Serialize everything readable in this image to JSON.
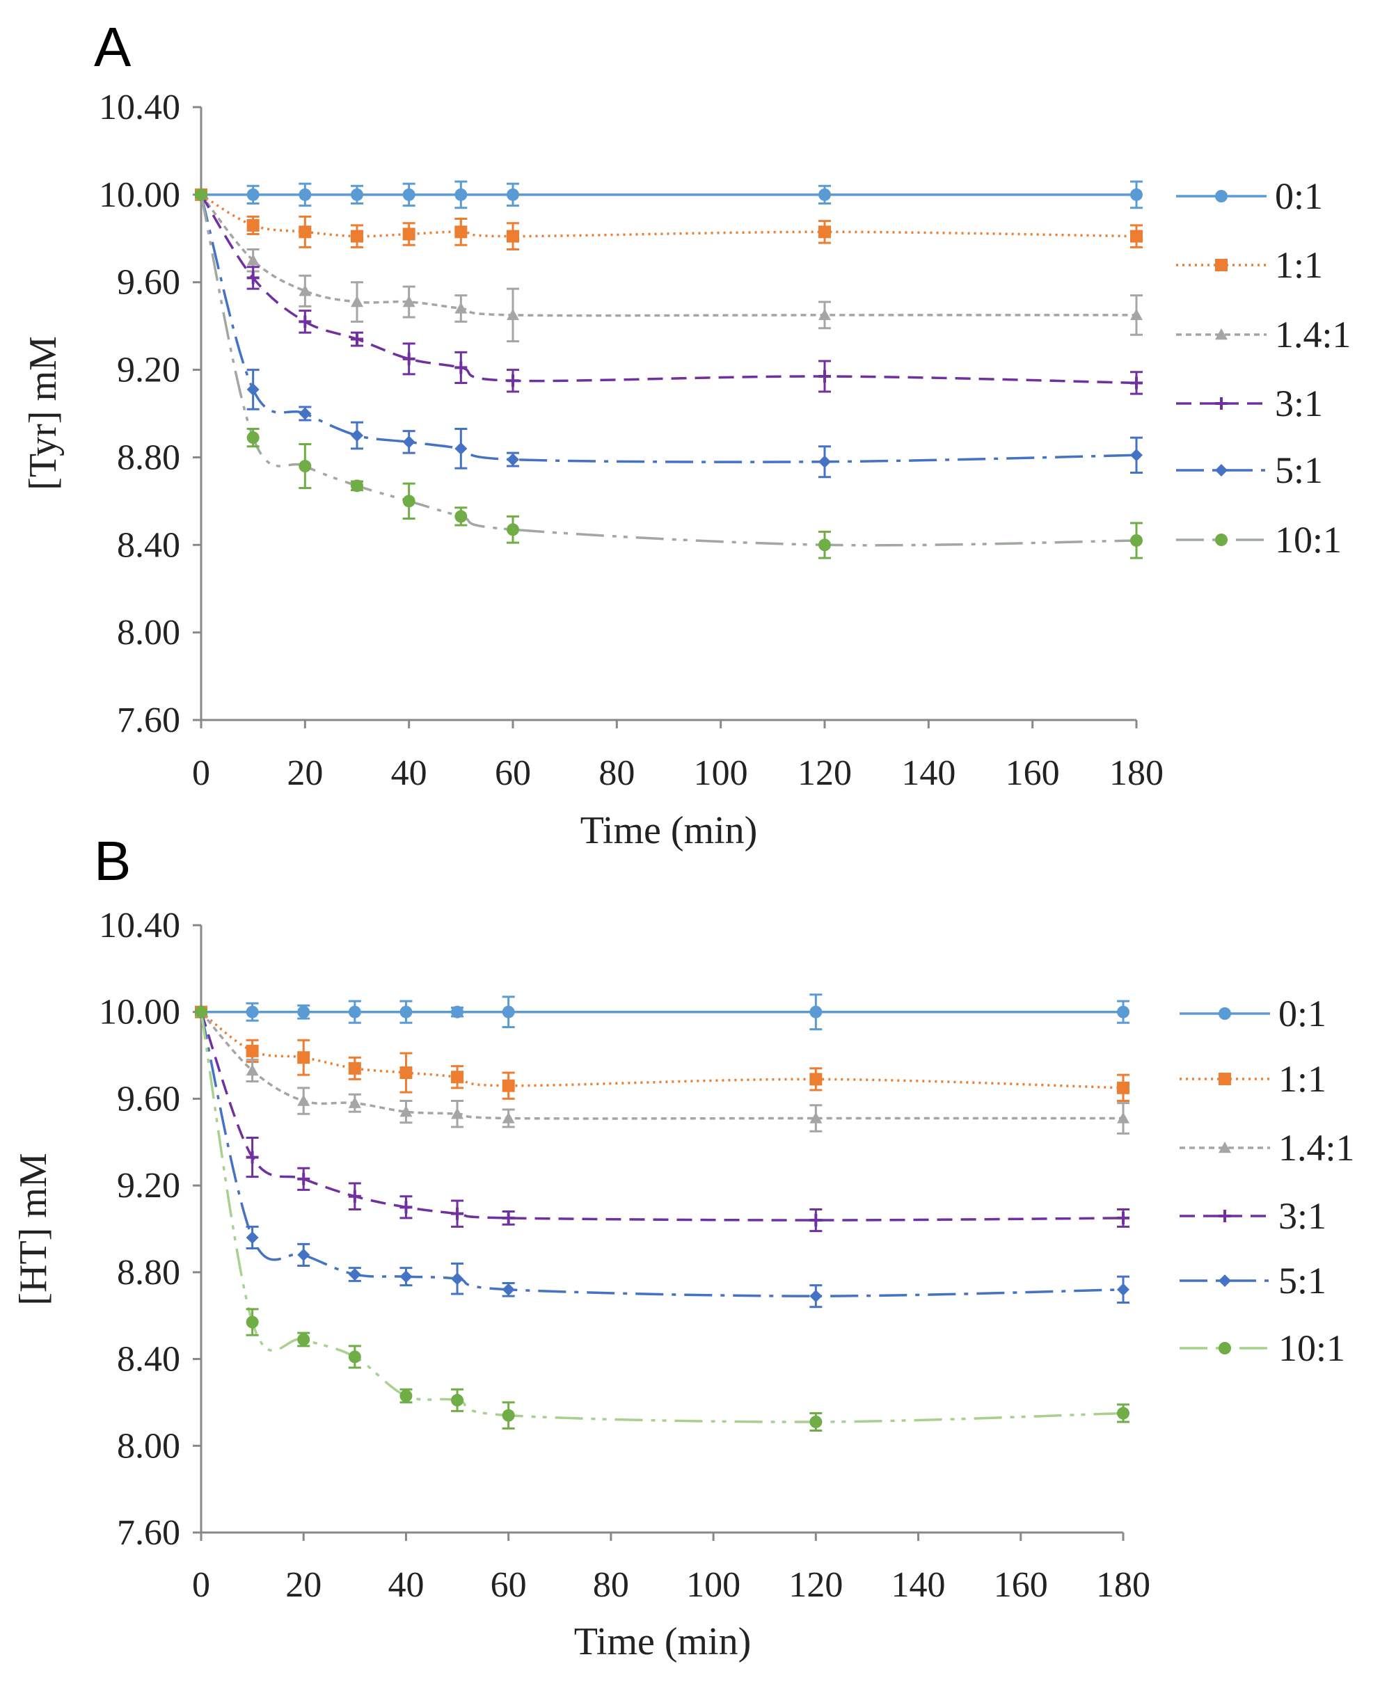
{
  "chart_data": [
    {
      "type": "line",
      "panel_label": "A",
      "xlabel": "Time (min)",
      "ylabel": "[Tyr] mM",
      "xlim": [
        0,
        180
      ],
      "ylim": [
        7.6,
        10.4
      ],
      "xticks": [
        0,
        20,
        40,
        60,
        80,
        100,
        120,
        140,
        160,
        180
      ],
      "yticks": [
        "7.60",
        "8.00",
        "8.40",
        "8.80",
        "9.20",
        "9.60",
        "10.00",
        "10.40"
      ],
      "legend_position": "right",
      "x": [
        0,
        10,
        20,
        30,
        40,
        50,
        60,
        120,
        180
      ],
      "series": [
        {
          "name": "0:1",
          "color": "#5b9bd5",
          "line": "#5b9bd5",
          "dash": "",
          "marker": "circle",
          "values": [
            10.0,
            10.0,
            10.0,
            10.0,
            10.0,
            10.0,
            10.0,
            10.0,
            10.0
          ],
          "errors": [
            0.01,
            0.04,
            0.05,
            0.04,
            0.05,
            0.06,
            0.05,
            0.04,
            0.06
          ]
        },
        {
          "name": "1:1",
          "color": "#ed7d31",
          "line": "#ed7d31",
          "dash": "3 6",
          "marker": "square",
          "values": [
            10.0,
            9.86,
            9.83,
            9.81,
            9.82,
            9.83,
            9.81,
            9.83,
            9.81
          ],
          "errors": [
            0.01,
            0.04,
            0.07,
            0.05,
            0.05,
            0.06,
            0.06,
            0.05,
            0.05
          ]
        },
        {
          "name": "1.4:1",
          "color": "#a5a5a5",
          "line": "#a5a5a5",
          "dash": "8 6",
          "marker": "triangle",
          "values": [
            10.0,
            9.7,
            9.56,
            9.51,
            9.51,
            9.48,
            9.45,
            9.45,
            9.45
          ],
          "errors": [
            0.01,
            0.05,
            0.07,
            0.09,
            0.07,
            0.06,
            0.12,
            0.06,
            0.09
          ]
        },
        {
          "name": "3:1",
          "color": "#7030a0",
          "line": "#7030a0",
          "dash": "22 12",
          "marker": "plus",
          "values": [
            10.0,
            9.62,
            9.42,
            9.34,
            9.25,
            9.21,
            9.15,
            9.17,
            9.14
          ],
          "errors": [
            0.01,
            0.05,
            0.05,
            0.03,
            0.07,
            0.07,
            0.05,
            0.07,
            0.05
          ]
        },
        {
          "name": "5:1",
          "color": "#4472c4",
          "line": "#4472c4",
          "dash": "40 12 6 12",
          "marker": "diamond",
          "values": [
            10.0,
            9.11,
            9.0,
            8.9,
            8.87,
            8.84,
            8.79,
            8.78,
            8.81
          ],
          "errors": [
            0.01,
            0.09,
            0.03,
            0.06,
            0.05,
            0.09,
            0.03,
            0.07,
            0.08
          ]
        },
        {
          "name": "10:1",
          "color": "#70ad47",
          "line": "#a0a8a0",
          "dash": "40 12 6 10 6 12",
          "marker": "circle",
          "values": [
            10.0,
            8.89,
            8.76,
            8.67,
            8.6,
            8.53,
            8.47,
            8.4,
            8.42
          ],
          "errors": [
            0.01,
            0.04,
            0.1,
            0.02,
            0.08,
            0.04,
            0.06,
            0.06,
            0.08
          ]
        }
      ]
    },
    {
      "type": "line",
      "panel_label": "B",
      "xlabel": "Time (min)",
      "ylabel": "[HT] mM",
      "xlim": [
        0,
        180
      ],
      "ylim": [
        7.6,
        10.4
      ],
      "xticks": [
        0,
        20,
        40,
        60,
        80,
        100,
        120,
        140,
        160,
        180
      ],
      "yticks": [
        "7.60",
        "8.00",
        "8.40",
        "8.80",
        "9.20",
        "9.60",
        "10.00",
        "10.40"
      ],
      "legend_position": "right",
      "x": [
        0,
        10,
        20,
        30,
        40,
        50,
        60,
        120,
        180
      ],
      "series": [
        {
          "name": "0:1",
          "color": "#5b9bd5",
          "line": "#5b9bd5",
          "dash": "",
          "marker": "circle",
          "values": [
            10.0,
            10.0,
            10.0,
            10.0,
            10.0,
            10.0,
            10.0,
            10.0,
            10.0
          ],
          "errors": [
            0.01,
            0.04,
            0.03,
            0.05,
            0.05,
            0.02,
            0.07,
            0.08,
            0.05
          ]
        },
        {
          "name": "1:1",
          "color": "#ed7d31",
          "line": "#ed7d31",
          "dash": "3 6",
          "marker": "square",
          "values": [
            10.0,
            9.82,
            9.79,
            9.74,
            9.72,
            9.7,
            9.66,
            9.69,
            9.65
          ],
          "errors": [
            0.01,
            0.05,
            0.08,
            0.05,
            0.09,
            0.05,
            0.06,
            0.05,
            0.06
          ]
        },
        {
          "name": "1.4:1",
          "color": "#a5a5a5",
          "line": "#a5a5a5",
          "dash": "8 6",
          "marker": "triangle",
          "values": [
            10.0,
            9.73,
            9.59,
            9.58,
            9.54,
            9.53,
            9.51,
            9.51,
            9.51
          ],
          "errors": [
            0.01,
            0.05,
            0.06,
            0.04,
            0.05,
            0.06,
            0.04,
            0.06,
            0.07
          ]
        },
        {
          "name": "3:1",
          "color": "#7030a0",
          "line": "#7030a0",
          "dash": "22 12",
          "marker": "plus",
          "values": [
            10.0,
            9.33,
            9.23,
            9.15,
            9.1,
            9.07,
            9.05,
            9.04,
            9.05
          ],
          "errors": [
            0.01,
            0.09,
            0.05,
            0.06,
            0.05,
            0.06,
            0.03,
            0.05,
            0.04
          ]
        },
        {
          "name": "5:1",
          "color": "#4472c4",
          "line": "#4472c4",
          "dash": "40 12 6 12",
          "marker": "diamond",
          "values": [
            10.0,
            8.96,
            8.88,
            8.79,
            8.78,
            8.77,
            8.72,
            8.69,
            8.72
          ],
          "errors": [
            0.01,
            0.05,
            0.05,
            0.03,
            0.04,
            0.07,
            0.03,
            0.05,
            0.06
          ]
        },
        {
          "name": "10:1",
          "color": "#70ad47",
          "line": "#a9d18e",
          "dash": "40 12 6 10 6 12",
          "marker": "circle",
          "values": [
            10.0,
            8.57,
            8.49,
            8.41,
            8.23,
            8.21,
            8.14,
            8.11,
            8.15
          ],
          "errors": [
            0.01,
            0.06,
            0.03,
            0.05,
            0.03,
            0.05,
            0.06,
            0.04,
            0.04
          ]
        }
      ]
    }
  ]
}
